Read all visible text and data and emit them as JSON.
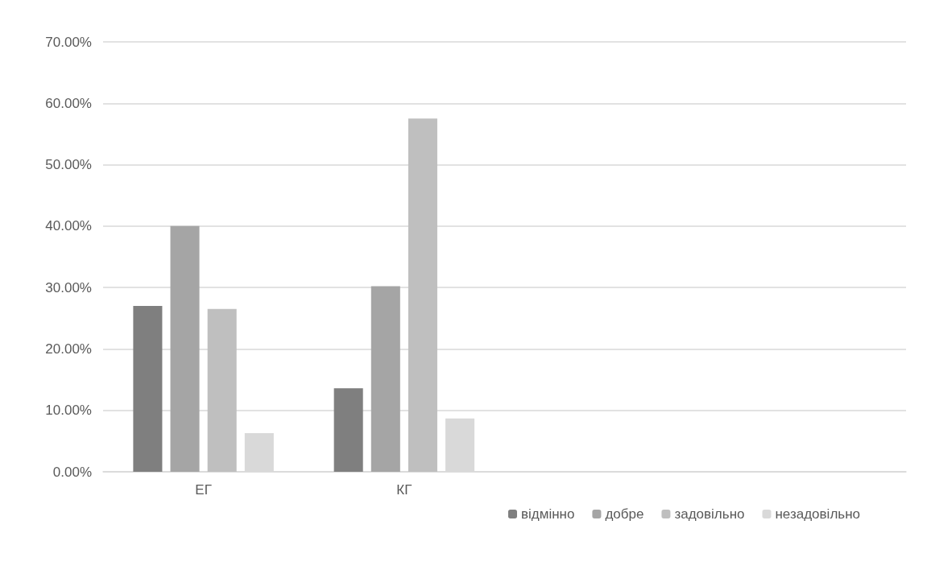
{
  "chart_data": {
    "type": "bar",
    "categories": [
      "ЕГ",
      "КГ",
      null,
      null
    ],
    "series": [
      {
        "name": "відмінно",
        "color": "#7f7f7f",
        "values": [
          27.0,
          13.6,
          null,
          null
        ]
      },
      {
        "name": "добре",
        "color": "#a5a5a5",
        "values": [
          40.0,
          30.2,
          null,
          null
        ]
      },
      {
        "name": "задовільно",
        "color": "#bfbfbf",
        "values": [
          26.5,
          57.5,
          null,
          null
        ]
      },
      {
        "name": "незадовільно",
        "color": "#d9d9d9",
        "values": [
          6.3,
          8.7,
          null,
          null
        ]
      }
    ],
    "ylim": [
      0,
      70
    ],
    "yticks": [
      {
        "value": 0,
        "label": "0.00%"
      },
      {
        "value": 10,
        "label": "10.00%"
      },
      {
        "value": 20,
        "label": "20.00%"
      },
      {
        "value": 30,
        "label": "30.00%"
      },
      {
        "value": 40,
        "label": "40.00%"
      },
      {
        "value": 50,
        "label": "50.00%"
      },
      {
        "value": 60,
        "label": "60.00%"
      },
      {
        "value": 70,
        "label": "70.00%"
      }
    ],
    "grid": "y",
    "legend": "bottom right"
  }
}
